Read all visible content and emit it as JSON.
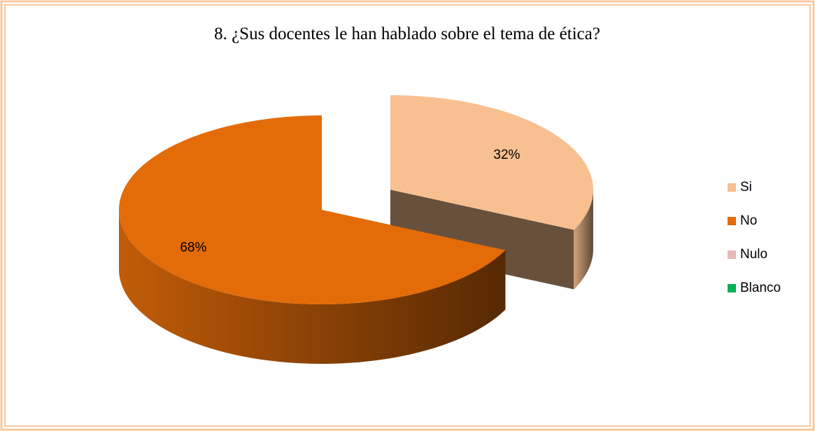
{
  "chart_data": {
    "type": "pie",
    "title": "8. ¿Sus docentes le han hablado sobre el tema de ética?",
    "categories": [
      "Si",
      "No",
      "Nulo",
      "Blanco"
    ],
    "values": [
      32,
      68,
      0,
      0
    ],
    "value_labels": [
      "32%",
      "68%",
      null,
      null
    ],
    "colors": [
      "#f8c090",
      "#e36c09",
      "#e6b9b8",
      "#00b050"
    ],
    "legend": "right"
  }
}
